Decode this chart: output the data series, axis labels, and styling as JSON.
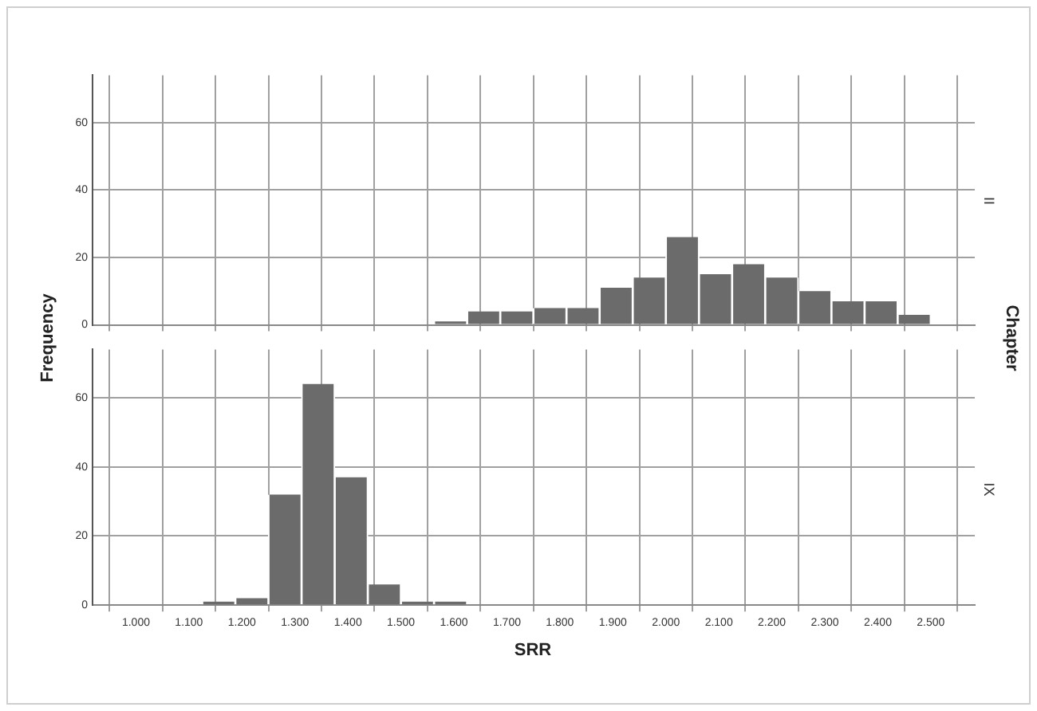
{
  "chart_data": [
    {
      "type": "histogram",
      "ylabel": "Frequency",
      "y2label": "II",
      "annotations": [
        "Chapter"
      ],
      "bins": [
        1562.5,
        1625,
        1687.5,
        1750,
        1812.5,
        1875,
        1937.5,
        2000,
        2062.5,
        2125,
        2187.5,
        2250,
        2312.5,
        2375,
        2437.5,
        2500
      ],
      "values": [
        1,
        4,
        4,
        5,
        5,
        11,
        14,
        26,
        15,
        18,
        14,
        10,
        7,
        7,
        3
      ],
      "color": "#6b6b6b",
      "xlim": [
        918,
        2583
      ],
      "ylim": [
        0,
        74
      ],
      "yticks": [
        0,
        20,
        40,
        60
      ],
      "xticks": [
        1000,
        1100,
        1200,
        1300,
        1400,
        1500,
        1600,
        1700,
        1800,
        1900,
        2000,
        2100,
        2200,
        2300,
        2400,
        2500
      ],
      "tick_labels": "y",
      "grid": true
    },
    {
      "type": "histogram",
      "xlabel": "SRR",
      "y2label": "IX",
      "bins": [
        1125,
        1187.5,
        1250,
        1312.5,
        1375,
        1437.5,
        1500,
        1562.5,
        1625
      ],
      "values": [
        1,
        2,
        32,
        64,
        37,
        6,
        1,
        1
      ],
      "color": "#6b6b6b",
      "xlim": [
        918,
        2583
      ],
      "ylim": [
        0,
        74
      ],
      "yticks": [
        0,
        20,
        40,
        60
      ],
      "xticks": [
        {
          "value": 1000,
          "label": "1.000"
        },
        {
          "value": 1100,
          "label": "1.100"
        },
        {
          "value": 1200,
          "label": "1.200"
        },
        {
          "value": 1300,
          "label": "1.300"
        },
        {
          "value": 1400,
          "label": "1.400"
        },
        {
          "value": 1500,
          "label": "1.500"
        },
        {
          "value": 1600,
          "label": "1.600"
        },
        {
          "value": 1700,
          "label": "1.700"
        },
        {
          "value": 1800,
          "label": "1.800"
        },
        {
          "value": 1900,
          "label": "1.900"
        },
        {
          "value": 2000,
          "label": "2.000"
        },
        {
          "value": 2100,
          "label": "2.100"
        },
        {
          "value": 2200,
          "label": "2.200"
        },
        {
          "value": 2300,
          "label": "2.300"
        },
        {
          "value": 2400,
          "label": "2.400"
        },
        {
          "value": 2500,
          "label": "2.500"
        }
      ],
      "grid": true
    }
  ]
}
